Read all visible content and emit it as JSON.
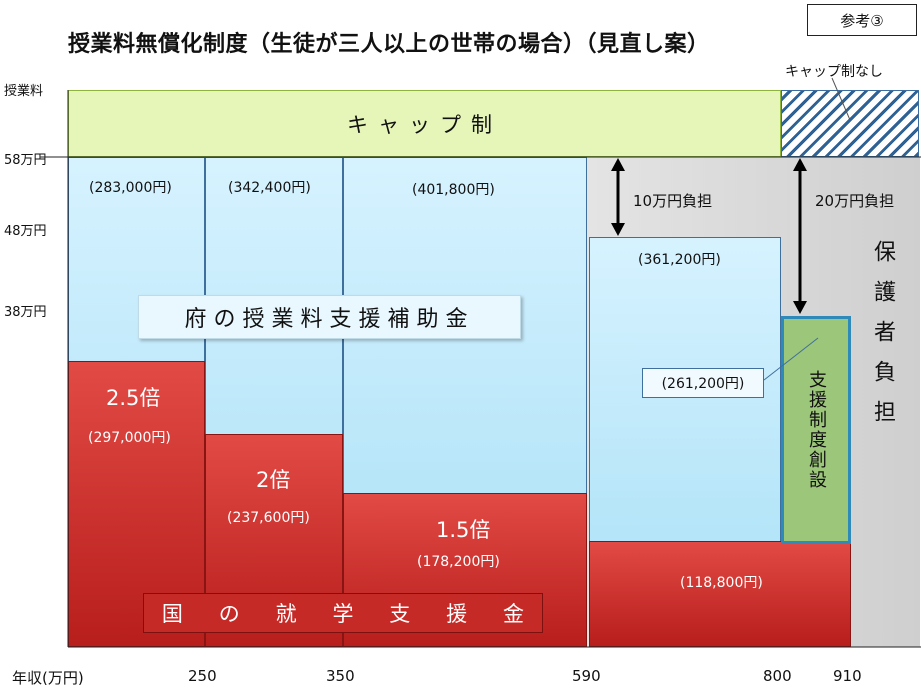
{
  "title": "授業料無償化制度（生徒が三人以上の世帯の場合）（見直し案）",
  "ref_label": "参考③",
  "y_axis": {
    "name": "授業料",
    "ticks": [
      "58万円",
      "48万円",
      "38万円"
    ]
  },
  "x_axis": {
    "name": "年収(万円)",
    "ticks": [
      "250",
      "350",
      "590",
      "800",
      "910"
    ]
  },
  "cap_label": "キャップ制",
  "no_cap_label": "キャップ制なし",
  "prefecture_support": {
    "label": "府の授業料支援補助金",
    "amounts": [
      "(283,000円)",
      "(342,400円)",
      "(401,800円)",
      "(361,200円)"
    ]
  },
  "national_support": {
    "label": "国の就学支援金",
    "chars": [
      "国",
      "の",
      "就",
      "学",
      "支",
      "援",
      "金"
    ],
    "multipliers": [
      "2.5倍",
      "2倍",
      "1.5倍"
    ],
    "amounts": [
      "(297,000円)",
      "(237,600円)",
      "(178,200円)",
      "(118,800円)"
    ]
  },
  "burden_10": "10万円負担",
  "burden_20": "20万円負担",
  "guardian_burden": "保護者負担",
  "new_support": {
    "label": "支援制度創設",
    "amount": "(261,200円)"
  },
  "colors": {
    "red": "#c52a27",
    "cyan": "#c4ebfb",
    "green": "#9cc67a",
    "cap_fill": "#e6f5b8",
    "grey": "#d9d9d9"
  }
}
